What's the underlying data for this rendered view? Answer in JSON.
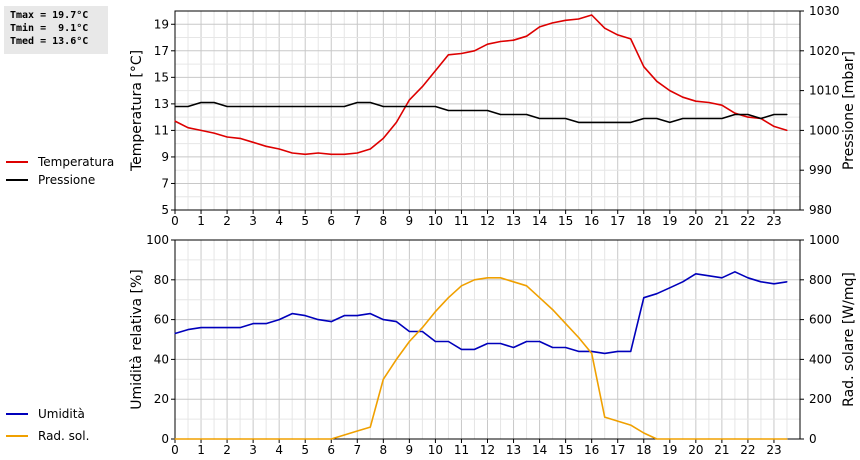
{
  "stats": {
    "tmax": "Tmax = 19.7°C",
    "tmin": "Tmin =  9.1°C",
    "tmed": "Tmed = 13.6°C"
  },
  "chart_data": [
    {
      "type": "line",
      "x_ticks": [
        "0",
        "1",
        "2",
        "3",
        "4",
        "5",
        "6",
        "7",
        "8",
        "9",
        "10",
        "11",
        "12",
        "13",
        "14",
        "15",
        "16",
        "17",
        "18",
        "19",
        "20",
        "21",
        "22",
        "23"
      ],
      "xlim": [
        0,
        24
      ],
      "ylabel_left": "Temperatura [°C]",
      "ylabel_right": "Pressione [mbar]",
      "ylim_left": [
        5,
        20
      ],
      "yticks_left": [
        "5",
        "7",
        "9",
        "11",
        "13",
        "15",
        "17",
        "19"
      ],
      "ylim_right": [
        980,
        1030
      ],
      "yticks_right": [
        "980",
        "990",
        "1000",
        "1010",
        "1020",
        "1030"
      ],
      "grid": true,
      "legend_position": "left",
      "series": [
        {
          "name": "Temperatura",
          "axis": "left",
          "color": "#dd0000",
          "x": [
            0,
            0.5,
            1,
            1.5,
            2,
            2.5,
            3,
            3.5,
            4,
            4.5,
            5,
            5.5,
            6,
            6.5,
            7,
            7.5,
            8,
            8.5,
            9,
            9.5,
            10,
            10.5,
            11,
            11.5,
            12,
            12.5,
            13,
            13.5,
            14,
            14.5,
            15,
            15.5,
            16,
            16.5,
            17,
            17.5,
            18,
            18.5,
            19,
            19.5,
            20,
            20.5,
            21,
            21.5,
            22,
            22.5,
            23,
            23.5
          ],
          "values": [
            11.7,
            11.2,
            11.0,
            10.8,
            10.5,
            10.4,
            10.1,
            9.8,
            9.6,
            9.3,
            9.2,
            9.3,
            9.2,
            9.2,
            9.3,
            9.6,
            10.4,
            11.6,
            13.3,
            14.3,
            15.5,
            16.7,
            16.8,
            17.0,
            17.5,
            17.7,
            17.8,
            18.1,
            18.8,
            19.1,
            19.3,
            19.4,
            19.7,
            18.7,
            18.2,
            17.9,
            15.8,
            14.7,
            14.0,
            13.5,
            13.2,
            13.1,
            12.9,
            12.3,
            12.0,
            11.9,
            11.3,
            11.0
          ]
        },
        {
          "name": "Pressione",
          "axis": "right",
          "color": "#000000",
          "x": [
            0,
            0.5,
            1,
            1.5,
            2,
            2.5,
            3,
            3.5,
            4,
            4.5,
            5,
            5.5,
            6,
            6.5,
            7,
            7.5,
            8,
            8.5,
            9,
            9.5,
            10,
            10.5,
            11,
            11.5,
            12,
            12.5,
            13,
            13.5,
            14,
            14.5,
            15,
            15.5,
            16,
            16.5,
            17,
            17.5,
            18,
            18.5,
            19,
            19.5,
            20,
            20.5,
            21,
            21.5,
            22,
            22.5,
            23,
            23.5
          ],
          "values": [
            1006,
            1006,
            1007,
            1007,
            1006,
            1006,
            1006,
            1006,
            1006,
            1006,
            1006,
            1006,
            1006,
            1006,
            1007,
            1007,
            1006,
            1006,
            1006,
            1006,
            1006,
            1005,
            1005,
            1005,
            1005,
            1004,
            1004,
            1004,
            1003,
            1003,
            1003,
            1002,
            1002,
            1002,
            1002,
            1002,
            1003,
            1003,
            1002,
            1003,
            1003,
            1003,
            1003,
            1004,
            1004,
            1003,
            1004,
            1004
          ]
        }
      ]
    },
    {
      "type": "line",
      "x_ticks": [
        "0",
        "1",
        "2",
        "3",
        "4",
        "5",
        "6",
        "7",
        "8",
        "9",
        "10",
        "11",
        "12",
        "13",
        "14",
        "15",
        "16",
        "17",
        "18",
        "19",
        "20",
        "21",
        "22",
        "23"
      ],
      "xlim": [
        0,
        24
      ],
      "ylabel_left": "Umidità relativa [%]",
      "ylabel_right": "Rad. solare [W/mq]",
      "ylim_left": [
        0,
        100
      ],
      "yticks_left": [
        "0",
        "20",
        "40",
        "60",
        "80",
        "100"
      ],
      "ylim_right": [
        0,
        1000
      ],
      "yticks_right": [
        "0",
        "200",
        "400",
        "600",
        "800",
        "1000"
      ],
      "grid": true,
      "legend_position": "left",
      "series": [
        {
          "name": "Umidità",
          "axis": "left",
          "color": "#0000bb",
          "x": [
            0,
            0.5,
            1,
            1.5,
            2,
            2.5,
            3,
            3.5,
            4,
            4.5,
            5,
            5.5,
            6,
            6.5,
            7,
            7.5,
            8,
            8.5,
            9,
            9.5,
            10,
            10.5,
            11,
            11.5,
            12,
            12.5,
            13,
            13.5,
            14,
            14.5,
            15,
            15.5,
            16,
            16.5,
            17,
            17.5,
            18,
            18.5,
            19,
            19.5,
            20,
            20.5,
            21,
            21.5,
            22,
            22.5,
            23,
            23.5
          ],
          "values": [
            53,
            55,
            56,
            56,
            56,
            56,
            58,
            58,
            60,
            63,
            62,
            60,
            59,
            62,
            62,
            63,
            60,
            59,
            54,
            54,
            49,
            49,
            45,
            45,
            48,
            48,
            46,
            49,
            49,
            46,
            46,
            44,
            44,
            43,
            44,
            44,
            71,
            73,
            76,
            79,
            83,
            82,
            81,
            84,
            81,
            79,
            78,
            79
          ]
        },
        {
          "name": "Rad. sol.",
          "axis": "right",
          "color": "#f0a000",
          "x": [
            0,
            0.5,
            1,
            1.5,
            2,
            2.5,
            3,
            3.5,
            4,
            4.5,
            5,
            5.5,
            6,
            6.5,
            7,
            7.5,
            8,
            8.5,
            9,
            9.5,
            10,
            10.5,
            11,
            11.5,
            12,
            12.5,
            13,
            13.5,
            14,
            14.5,
            15,
            15.5,
            16,
            16.5,
            17,
            17.5,
            18,
            18.5,
            19,
            19.5,
            20,
            20.5,
            21,
            21.5,
            22,
            22.5,
            23,
            23.5
          ],
          "values": [
            0,
            0,
            0,
            0,
            0,
            0,
            0,
            0,
            0,
            0,
            0,
            0,
            0,
            20,
            40,
            60,
            300,
            400,
            490,
            560,
            640,
            710,
            770,
            800,
            810,
            810,
            790,
            770,
            710,
            650,
            580,
            510,
            430,
            110,
            90,
            70,
            30,
            0,
            0,
            0,
            0,
            0,
            0,
            0,
            0,
            0,
            0,
            0
          ]
        }
      ]
    }
  ]
}
